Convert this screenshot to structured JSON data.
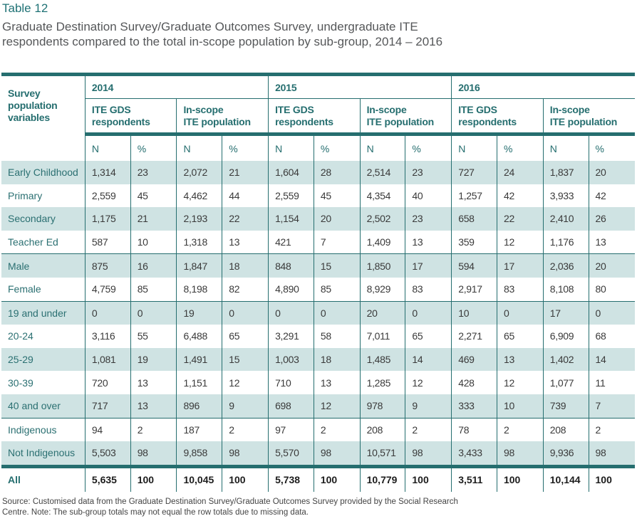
{
  "caption": {
    "label": "Table 12",
    "title": "Graduate Destination Survey/Graduate Outcomes Survey, undergraduate ITE respondents compared to the total in-scope population by sub-group, 2014 – 2016"
  },
  "table": {
    "row_header": "Survey population variables",
    "years": [
      "2014",
      "2015",
      "2016"
    ],
    "groups": [
      "ITE GDS respondents",
      "In-scope ITE population"
    ],
    "group_lines": [
      [
        "ITE GDS",
        "respondents"
      ],
      [
        "In-scope",
        "ITE population"
      ]
    ],
    "col_n": "N",
    "col_pct": "%",
    "rows": [
      {
        "label": "Early Childhood",
        "values": [
          "1,314",
          "23",
          "2,072",
          "21",
          "1,604",
          "28",
          "2,514",
          "23",
          "727",
          "24",
          "1,837",
          "20"
        ]
      },
      {
        "label": "Primary",
        "values": [
          "2,559",
          "45",
          "4,462",
          "44",
          "2,559",
          "45",
          "4,354",
          "40",
          "1,257",
          "42",
          "3,933",
          "42"
        ]
      },
      {
        "label": "Secondary",
        "values": [
          "1,175",
          "21",
          "2,193",
          "22",
          "1,154",
          "20",
          "2,502",
          "23",
          "658",
          "22",
          "2,410",
          "26"
        ]
      },
      {
        "label": "Teacher Ed",
        "values": [
          "587",
          "10",
          "1,318",
          "13",
          "421",
          "7",
          "1,409",
          "13",
          "359",
          "12",
          "1,176",
          "13"
        ]
      },
      {
        "label": "Male",
        "values": [
          "875",
          "16",
          "1,847",
          "18",
          "848",
          "15",
          "1,850",
          "17",
          "594",
          "17",
          "2,036",
          "20"
        ]
      },
      {
        "label": "Female",
        "values": [
          "4,759",
          "85",
          "8,198",
          "82",
          "4,890",
          "85",
          "8,929",
          "83",
          "2,917",
          "83",
          "8,108",
          "80"
        ]
      },
      {
        "label": "19 and under",
        "values": [
          "0",
          "0",
          "19",
          "0",
          "0",
          "0",
          "20",
          "0",
          "10",
          "0",
          "17",
          "0"
        ]
      },
      {
        "label": "20-24",
        "values": [
          "3,116",
          "55",
          "6,488",
          "65",
          "3,291",
          "58",
          "7,011",
          "65",
          "2,271",
          "65",
          "6,909",
          "68"
        ]
      },
      {
        "label": "25-29",
        "values": [
          "1,081",
          "19",
          "1,491",
          "15",
          "1,003",
          "18",
          "1,485",
          "14",
          "469",
          "13",
          "1,402",
          "14"
        ]
      },
      {
        "label": "30-39",
        "values": [
          "720",
          "13",
          "1,151",
          "12",
          "710",
          "13",
          "1,285",
          "12",
          "428",
          "12",
          "1,077",
          "11"
        ]
      },
      {
        "label": "40 and over",
        "values": [
          "717",
          "13",
          "896",
          "9",
          "698",
          "12",
          "978",
          "9",
          "333",
          "10",
          "739",
          "7"
        ]
      },
      {
        "label": "Indigenous",
        "values": [
          "94",
          "2",
          "187",
          "2",
          "97",
          "2",
          "208",
          "2",
          "78",
          "2",
          "208",
          "2"
        ]
      },
      {
        "label": "Not Indigenous",
        "values": [
          "5,503",
          "98",
          "9,858",
          "98",
          "5,570",
          "98",
          "10,571",
          "98",
          "3,433",
          "98",
          "9,936",
          "98"
        ]
      }
    ],
    "total": {
      "label": "All",
      "values": [
        "5,635",
        "100",
        "10,045",
        "100",
        "5,738",
        "100",
        "10,779",
        "100",
        "3,511",
        "100",
        "10,144",
        "100"
      ]
    }
  },
  "footnote": "Source: Customised data from the Graduate Destination Survey/Graduate Outcomes Survey provided by the Social Research Centre. Note: The sub-group totals may not equal the row totals due to missing data.",
  "colors": {
    "accent": "#256e6f",
    "row_shade": "#cfe3e3",
    "caption_label": "#1f7275"
  }
}
